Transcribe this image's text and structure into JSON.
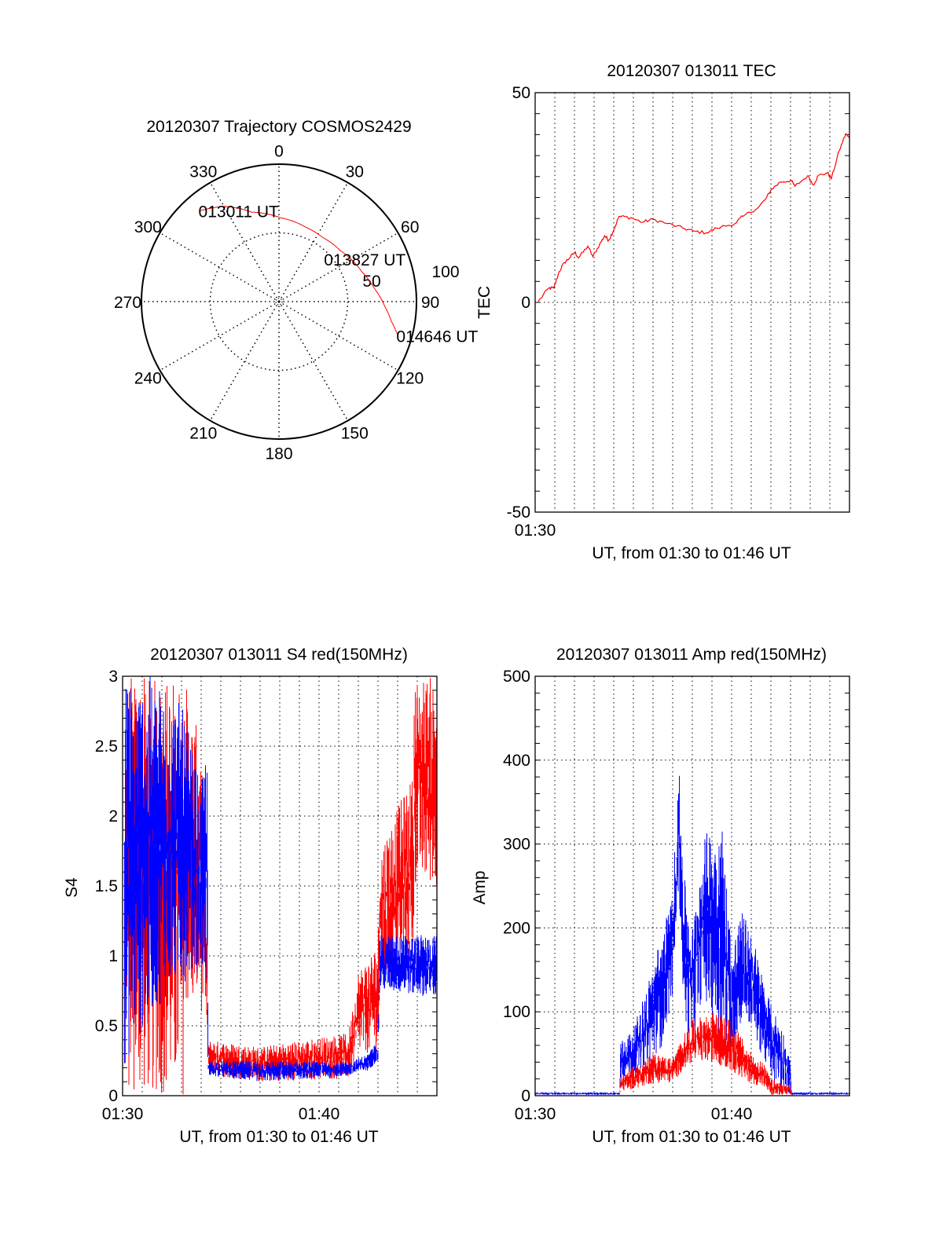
{
  "colors": {
    "red": "#ff0000",
    "blue": "#0000ff",
    "axis": "#000000"
  },
  "chart_data": [
    {
      "id": "polar",
      "type": "polar-trajectory",
      "title": "20120307 Trajectory COSMOS2429",
      "angle_labels": [
        "0",
        "30",
        "60",
        "90",
        "120",
        "150",
        "180",
        "210",
        "240",
        "270",
        "300",
        "330"
      ],
      "angles": [
        0,
        30,
        60,
        90,
        120,
        150,
        180,
        210,
        240,
        270,
        300,
        330
      ],
      "radial_labels": [
        "50",
        "100"
      ],
      "radial_values": [
        50,
        100
      ],
      "rlim": [
        0,
        100
      ],
      "ylabel": "TEC",
      "trajectory": [
        [
          319,
          87.5
        ],
        [
          330,
          80
        ],
        [
          343,
          68
        ],
        [
          1,
          61
        ],
        [
          20,
          57.5
        ],
        [
          34,
          56.5
        ],
        [
          50,
          58
        ],
        [
          70,
          64
        ],
        [
          82,
          70
        ],
        [
          92.5,
          77
        ],
        [
          100,
          83
        ],
        [
          106,
          90
        ]
      ],
      "annotations": [
        {
          "text": "013011 UT",
          "az": 319,
          "r": 87.5
        },
        {
          "text": "013827 UT",
          "az": 34,
          "r": 56.5
        },
        {
          "text": "014646 UT",
          "az": 106,
          "r": 90
        }
      ]
    },
    {
      "id": "tec",
      "type": "line",
      "title": "20120307 013011 TEC",
      "xlabel": "UT, from 01:30 to 01:46 UT",
      "ylabel": "TEC",
      "xlim": [
        0,
        16
      ],
      "ylim": [
        -50,
        50
      ],
      "xticks": [
        {
          "v": 0,
          "label": "01:30"
        }
      ],
      "yticks": [
        {
          "v": -50,
          "label": "-50"
        },
        {
          "v": 0,
          "label": "0"
        },
        {
          "v": 50,
          "label": "50"
        }
      ],
      "hgrid": [
        0
      ],
      "minor_y": 5,
      "series": [
        {
          "name": "TEC",
          "color": "#ff0000",
          "x": [
            0.16,
            0.69,
            0.95,
            1.22,
            1.49,
            1.75,
            2.02,
            2.21,
            2.68,
            2.94,
            3.28,
            3.54,
            3.74,
            4.0,
            4.27,
            4.87,
            5.46,
            5.99,
            6.72,
            7.52,
            8.05,
            8.71,
            9.24,
            10.17,
            10.57,
            11.37,
            11.76,
            12.03,
            12.49,
            13.02,
            13.22,
            13.88,
            14.15,
            14.41,
            14.88,
            15.08,
            15.48,
            15.81,
            16.0
          ],
          "y": [
            0.2,
            3.4,
            3.4,
            7.3,
            9.5,
            10.6,
            12,
            10.6,
            13.4,
            10.9,
            13.8,
            15.9,
            14.8,
            17.3,
            20.5,
            20.2,
            19.1,
            19.8,
            18.8,
            17.7,
            17,
            16.6,
            17.7,
            18.8,
            20.5,
            22.7,
            24.8,
            27,
            28.7,
            29.1,
            27.7,
            30.2,
            28,
            30.2,
            30.9,
            29.5,
            36.2,
            40.2,
            39.1
          ]
        }
      ]
    },
    {
      "id": "s4",
      "type": "line",
      "title": "20120307 013011 S4 red(150MHz)",
      "xlabel": "UT, from 01:30 to 01:46 UT",
      "ylabel": "S4",
      "xlim": [
        0,
        16
      ],
      "ylim": [
        0,
        3
      ],
      "xticks": [
        {
          "v": 0,
          "label": "01:30"
        },
        {
          "v": 10,
          "label": "01:40"
        }
      ],
      "yticks": [
        {
          "v": 0,
          "label": "0"
        },
        {
          "v": 0.5,
          "label": "0.5"
        },
        {
          "v": 1,
          "label": "1"
        },
        {
          "v": 1.5,
          "label": "1.5"
        },
        {
          "v": 2,
          "label": "2"
        },
        {
          "v": 2.5,
          "label": "2.5"
        },
        {
          "v": 3,
          "label": "3"
        }
      ],
      "hgrid": [
        0.5,
        1,
        1.5,
        2,
        2.5
      ],
      "minor_y": 0.1,
      "series": [
        {
          "name": "red",
          "color": "#ff0000",
          "envelope": [
            [
              0.1,
              0,
              3
            ],
            [
              3.1,
              0,
              3
            ],
            [
              3.15,
              0.6,
              3
            ],
            [
              4.0,
              0.6,
              2.5
            ],
            [
              4.3,
              0.5,
              1.0
            ],
            [
              4.35,
              0.15,
              0.4
            ],
            [
              7.0,
              0.1,
              0.35
            ],
            [
              11.5,
              0.12,
              0.45
            ],
            [
              12.0,
              0.3,
              0.9
            ],
            [
              13.0,
              0.3,
              1.1
            ],
            [
              13.1,
              0.8,
              1.8
            ],
            [
              14.8,
              1.0,
              2.3
            ],
            [
              14.85,
              1.5,
              3
            ],
            [
              16.0,
              1.5,
              3
            ]
          ]
        },
        {
          "name": "blue",
          "color": "#0000ff",
          "envelope": [
            [
              0.1,
              0.2,
              3
            ],
            [
              1.5,
              0.6,
              3
            ],
            [
              3.0,
              0.8,
              2.8
            ],
            [
              4.0,
              0.9,
              2.2
            ],
            [
              4.3,
              0.8,
              2.6
            ],
            [
              4.35,
              0.14,
              0.25
            ],
            [
              7.0,
              0.1,
              0.25
            ],
            [
              11.5,
              0.14,
              0.24
            ],
            [
              12.5,
              0.18,
              0.3
            ],
            [
              13.0,
              0.25,
              0.4
            ],
            [
              13.1,
              0.75,
              1.15
            ],
            [
              16.0,
              0.7,
              1.15
            ]
          ]
        }
      ]
    },
    {
      "id": "amp",
      "type": "line",
      "title": "20120307 013011 Amp red(150MHz)",
      "xlabel": "UT, from 01:30 to 01:46 UT",
      "ylabel": "Amp",
      "xlim": [
        0,
        16
      ],
      "ylim": [
        0,
        500
      ],
      "xticks": [
        {
          "v": 0,
          "label": "01:30"
        },
        {
          "v": 10,
          "label": "01:40"
        }
      ],
      "yticks": [
        {
          "v": 0,
          "label": "0"
        },
        {
          "v": 100,
          "label": "100"
        },
        {
          "v": 200,
          "label": "200"
        },
        {
          "v": 300,
          "label": "300"
        },
        {
          "v": 400,
          "label": "400"
        },
        {
          "v": 500,
          "label": "500"
        }
      ],
      "hgrid": [
        100,
        200,
        300,
        400
      ],
      "minor_y": 20,
      "series": [
        {
          "name": "blue",
          "color": "#0000ff",
          "envelope": [
            [
              0.0,
              1,
              4
            ],
            [
              4.3,
              1,
              4
            ],
            [
              4.35,
              20,
              65
            ],
            [
              5.0,
              25,
              80
            ],
            [
              5.8,
              40,
              140
            ],
            [
              6.5,
              60,
              200
            ],
            [
              7.0,
              120,
              240
            ],
            [
              7.3,
              250,
              400
            ],
            [
              7.6,
              80,
              260
            ],
            [
              8.0,
              60,
              200
            ],
            [
              8.5,
              120,
              300
            ],
            [
              9.0,
              90,
              330
            ],
            [
              9.5,
              60,
              330
            ],
            [
              10.0,
              40,
              180
            ],
            [
              10.5,
              90,
              220
            ],
            [
              11.0,
              80,
              200
            ],
            [
              11.5,
              50,
              150
            ],
            [
              12.0,
              20,
              110
            ],
            [
              12.6,
              5,
              80
            ],
            [
              13.0,
              2,
              40
            ],
            [
              13.05,
              1,
              4
            ],
            [
              16.0,
              1,
              4
            ]
          ]
        },
        {
          "name": "red",
          "color": "#ff0000",
          "envelope": [
            [
              4.3,
              0,
              0
            ],
            [
              4.35,
              5,
              25
            ],
            [
              5.0,
              8,
              35
            ],
            [
              6.0,
              15,
              50
            ],
            [
              7.0,
              15,
              45
            ],
            [
              7.5,
              30,
              70
            ],
            [
              8.0,
              40,
              90
            ],
            [
              9.0,
              40,
              100
            ],
            [
              10.0,
              30,
              90
            ],
            [
              10.5,
              20,
              70
            ],
            [
              11.0,
              15,
              50
            ],
            [
              11.6,
              10,
              40
            ],
            [
              12.0,
              0,
              20
            ],
            [
              13.0,
              0,
              12
            ],
            [
              13.1,
              0,
              0
            ]
          ]
        }
      ]
    }
  ]
}
